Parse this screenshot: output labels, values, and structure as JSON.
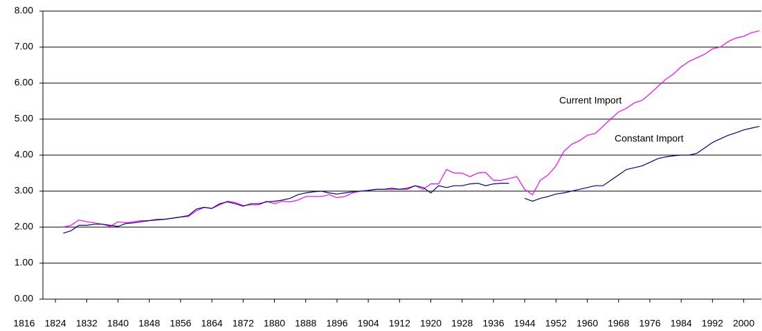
{
  "chart_data": {
    "type": "line",
    "x": [
      1826,
      1828,
      1830,
      1832,
      1834,
      1836,
      1838,
      1840,
      1842,
      1844,
      1846,
      1848,
      1850,
      1852,
      1854,
      1856,
      1858,
      1860,
      1862,
      1864,
      1866,
      1868,
      1870,
      1872,
      1874,
      1876,
      1878,
      1880,
      1882,
      1884,
      1886,
      1888,
      1890,
      1892,
      1894,
      1896,
      1898,
      1900,
      1902,
      1904,
      1906,
      1908,
      1910,
      1912,
      1914,
      1916,
      1918,
      1920,
      1922,
      1924,
      1926,
      1928,
      1930,
      1932,
      1934,
      1936,
      1938,
      1940,
      1942,
      1944,
      1946,
      1948,
      1950,
      1952,
      1954,
      1956,
      1958,
      1960,
      1962,
      1964,
      1966,
      1968,
      1970,
      1972,
      1974,
      1976,
      1978,
      1980,
      1982,
      1984,
      1986,
      1988,
      1990,
      1992,
      1994,
      1996,
      1998,
      2000,
      2002,
      2004
    ],
    "series": [
      {
        "name": "Current Import",
        "color": "#ff00ff",
        "values": [
          2.0,
          2.05,
          2.2,
          2.15,
          2.12,
          2.08,
          2.02,
          2.15,
          2.12,
          2.15,
          2.18,
          2.18,
          2.22,
          2.22,
          2.25,
          2.28,
          2.3,
          2.45,
          2.55,
          2.52,
          2.62,
          2.72,
          2.68,
          2.6,
          2.62,
          2.62,
          2.72,
          2.65,
          2.72,
          2.7,
          2.75,
          2.85,
          2.85,
          2.85,
          2.9,
          2.82,
          2.85,
          2.95,
          3.0,
          3.02,
          3.05,
          3.05,
          3.05,
          3.05,
          3.05,
          3.15,
          3.05,
          3.2,
          3.2,
          3.6,
          3.5,
          3.5,
          3.4,
          3.5,
          3.52,
          3.3,
          3.3,
          3.35,
          3.4,
          3.05,
          2.9,
          3.3,
          3.45,
          3.7,
          4.1,
          4.3,
          4.4,
          4.55,
          4.6,
          4.8,
          5.0,
          5.2,
          5.3,
          5.45,
          5.52,
          5.7,
          5.9,
          6.1,
          6.25,
          6.45,
          6.6,
          6.7,
          6.8,
          6.95,
          7.0,
          7.15,
          7.25,
          7.3,
          7.4,
          7.45
        ]
      },
      {
        "name": "Constant Import",
        "color": "#000080",
        "values": [
          1.83,
          1.9,
          2.05,
          2.05,
          2.08,
          2.08,
          2.05,
          2.02,
          2.1,
          2.12,
          2.15,
          2.18,
          2.2,
          2.22,
          2.25,
          2.28,
          2.32,
          2.5,
          2.55,
          2.52,
          2.65,
          2.7,
          2.65,
          2.58,
          2.65,
          2.65,
          2.7,
          2.72,
          2.75,
          2.8,
          2.9,
          2.95,
          2.98,
          3.0,
          2.95,
          2.92,
          2.95,
          2.98,
          3.0,
          3.02,
          3.05,
          3.05,
          3.08,
          3.05,
          3.08,
          3.15,
          3.1,
          2.95,
          3.15,
          3.1,
          3.15,
          3.15,
          3.2,
          3.22,
          3.15,
          3.2,
          3.22,
          3.22,
          null,
          2.8,
          2.72,
          2.8,
          2.85,
          2.92,
          2.95,
          3.0,
          3.05,
          3.1,
          3.15,
          3.15,
          3.3,
          3.45,
          3.6,
          3.65,
          3.7,
          3.8,
          3.9,
          3.95,
          3.98,
          4.0,
          4.0,
          4.05,
          4.2,
          4.35,
          4.45,
          4.55,
          4.62,
          4.7,
          4.75,
          4.8
        ]
      }
    ],
    "xlim": [
      1820.8,
      2004.5
    ],
    "xticks": [
      1816,
      1824,
      1832,
      1840,
      1848,
      1856,
      1864,
      1872,
      1880,
      1888,
      1896,
      1904,
      1912,
      1920,
      1928,
      1936,
      1944,
      1952,
      1960,
      1968,
      1976,
      1984,
      1992,
      2000
    ],
    "ylim": [
      0,
      8
    ],
    "yticks": [
      {
        "value": 0,
        "label": "0.00"
      },
      {
        "value": 1,
        "label": "1.00"
      },
      {
        "value": 2,
        "label": "2.00"
      },
      {
        "value": 3,
        "label": "3.00"
      },
      {
        "value": 4,
        "label": "4.00"
      },
      {
        "value": 5,
        "label": "5.00"
      },
      {
        "value": 6,
        "label": "6.00"
      },
      {
        "value": 7,
        "label": "7.00"
      },
      {
        "value": 8,
        "label": "8.00"
      }
    ],
    "grid": true
  }
}
